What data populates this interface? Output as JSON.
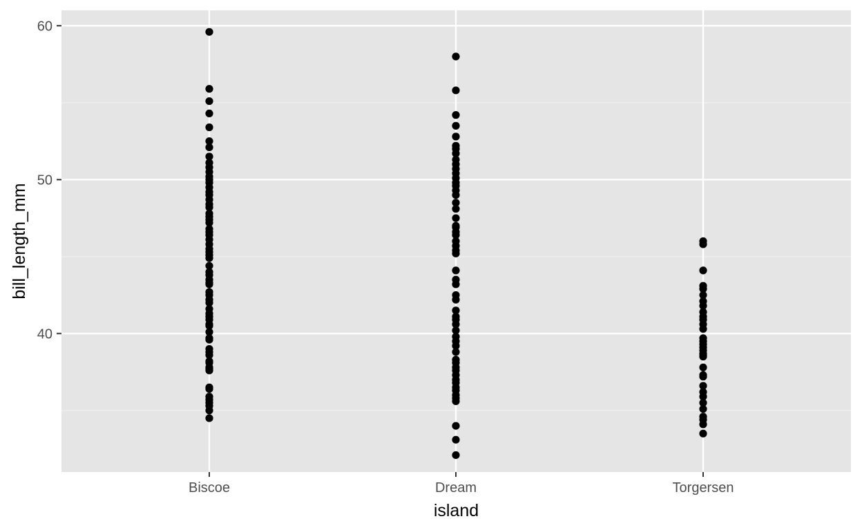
{
  "chart_data": {
    "type": "scatter",
    "title": "",
    "xlabel": "island",
    "ylabel": "bill_length_mm",
    "categories": [
      "Biscoe",
      "Dream",
      "Torgersen"
    ],
    "ylim": [
      31.0,
      61.0
    ],
    "yticks": [
      40,
      50,
      60
    ],
    "y_minor_ticks": [
      35,
      45,
      55
    ],
    "grid": true,
    "legend": "none",
    "colors": {
      "panel_background": "#e5e5e5",
      "grid_major": "#ffffff",
      "grid_minor": "#f2f2f2",
      "point": "#000000",
      "tick_text": "#4d4d4d",
      "axis_title": "#000000"
    },
    "series": [
      {
        "category": "Biscoe",
        "values": [
          34.5,
          35.0,
          35.3,
          35.5,
          35.7,
          35.9,
          36.4,
          36.5,
          37.6,
          37.7,
          37.8,
          38.1,
          38.2,
          38.6,
          38.8,
          39.0,
          39.6,
          39.7,
          40.1,
          40.5,
          40.6,
          40.9,
          41.1,
          41.3,
          41.6,
          42.0,
          42.2,
          42.5,
          42.7,
          43.2,
          43.3,
          43.5,
          43.8,
          44.0,
          44.4,
          44.9,
          45.1,
          45.3,
          45.5,
          45.8,
          46.1,
          46.4,
          46.6,
          46.8,
          47.2,
          47.4,
          47.6,
          47.8,
          48.2,
          48.4,
          48.7,
          49.0,
          49.2,
          49.5,
          49.8,
          50.0,
          50.2,
          50.5,
          50.8,
          51.1,
          51.5,
          52.1,
          52.5,
          53.4,
          54.3,
          55.1,
          55.9,
          59.6
        ]
      },
      {
        "category": "Dream",
        "values": [
          32.1,
          33.1,
          34.0,
          35.6,
          35.8,
          36.0,
          36.3,
          36.5,
          36.8,
          37.0,
          37.3,
          37.6,
          37.8,
          38.1,
          38.3,
          38.8,
          39.2,
          39.5,
          39.8,
          40.2,
          40.6,
          40.9,
          41.1,
          41.5,
          42.2,
          42.5,
          43.2,
          43.5,
          44.1,
          45.2,
          45.4,
          45.7,
          46.0,
          46.4,
          46.6,
          46.9,
          47.0,
          47.5,
          48.1,
          48.5,
          49.0,
          49.3,
          49.6,
          49.8,
          50.1,
          50.4,
          50.7,
          51.0,
          51.3,
          51.7,
          52.0,
          52.2,
          52.8,
          53.5,
          54.2,
          55.8,
          58.0
        ]
      },
      {
        "category": "Torgersen",
        "values": [
          33.5,
          34.1,
          34.4,
          34.6,
          35.1,
          35.5,
          35.9,
          36.2,
          36.6,
          37.2,
          37.3,
          37.8,
          38.5,
          38.6,
          38.7,
          38.9,
          39.1,
          39.3,
          39.5,
          39.7,
          40.3,
          40.6,
          40.9,
          41.1,
          41.4,
          41.8,
          42.1,
          42.5,
          42.9,
          43.1,
          44.1,
          45.8,
          46.0
        ]
      }
    ]
  }
}
